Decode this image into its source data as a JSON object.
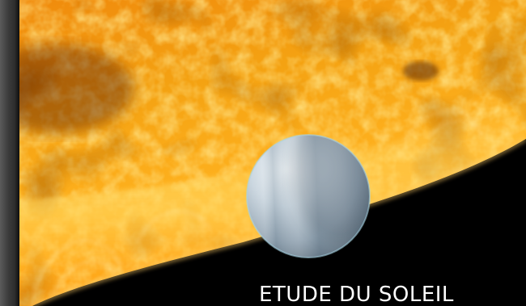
{
  "caption": {
    "text": "ETUDE DU SOLEIL"
  },
  "scene": {
    "subjects": [
      "sun-surface",
      "exoplanet"
    ],
    "colors": {
      "sun_core": "#ffe27a",
      "sun_mid": "#ffad17",
      "sun_deep": "#e25e05",
      "sun_dark": "#7a2a02",
      "space": "#000000",
      "planet_light": "#e6ecf0",
      "planet_mid": "#a9b9c6",
      "planet_shadow": "#5a6c7a",
      "frame": "#3a3a3a"
    }
  }
}
